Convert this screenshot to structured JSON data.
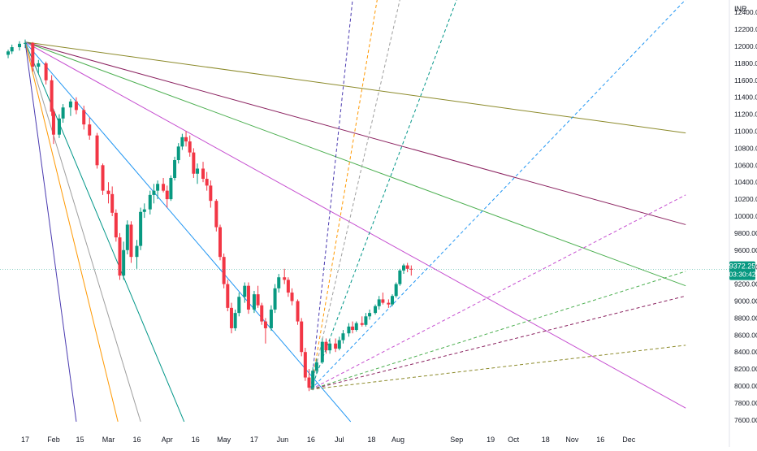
{
  "chart_data": {
    "type": "candlestick",
    "currency_label": "INR",
    "y_ticks": [
      7600,
      7800,
      8000,
      8200,
      8400,
      8600,
      8800,
      9000,
      9200,
      9400,
      9600,
      9800,
      10000,
      10200,
      10400,
      10600,
      10800,
      11000,
      11200,
      11400,
      11600,
      11800,
      12000,
      12200,
      12400
    ],
    "x_ticks": [
      {
        "label": "17",
        "date": "2020-01-17"
      },
      {
        "label": "Feb",
        "date": "2020-02-01"
      },
      {
        "label": "15",
        "date": "2020-02-15"
      },
      {
        "label": "Mar",
        "date": "2020-03-01"
      },
      {
        "label": "16",
        "date": "2020-03-16"
      },
      {
        "label": "Apr",
        "date": "2020-04-01"
      },
      {
        "label": "16",
        "date": "2020-04-16"
      },
      {
        "label": "May",
        "date": "2020-05-01"
      },
      {
        "label": "17",
        "date": "2020-05-17"
      },
      {
        "label": "Jun",
        "date": "2020-06-01"
      },
      {
        "label": "16",
        "date": "2020-06-16"
      },
      {
        "label": "Jul",
        "date": "2020-07-01"
      },
      {
        "label": "18",
        "date": "2020-07-18"
      },
      {
        "label": "Aug",
        "date": "2020-08-01"
      },
      {
        "label": "Sep",
        "date": "2020-09-01"
      },
      {
        "label": "19",
        "date": "2020-09-19"
      },
      {
        "label": "Oct",
        "date": "2020-10-01"
      },
      {
        "label": "18",
        "date": "2020-10-18"
      },
      {
        "label": "Nov",
        "date": "2020-11-01"
      },
      {
        "label": "16",
        "date": "2020-11-16"
      },
      {
        "label": "Dec",
        "date": "2020-12-01"
      }
    ],
    "candle_series": [
      {
        "date": "2020-01-08",
        "o": 11900,
        "h": 11960,
        "l": 11860,
        "c": 11940
      },
      {
        "date": "2020-01-10",
        "o": 11940,
        "h": 12020,
        "l": 11910,
        "c": 11990
      },
      {
        "date": "2020-01-14",
        "o": 11990,
        "h": 12060,
        "l": 11950,
        "c": 12030
      },
      {
        "date": "2020-01-17",
        "o": 12030,
        "h": 12080,
        "l": 11980,
        "c": 12040
      },
      {
        "date": "2020-01-21",
        "o": 12040,
        "h": 12050,
        "l": 11700,
        "c": 11760
      },
      {
        "date": "2020-01-24",
        "o": 11760,
        "h": 11840,
        "l": 11680,
        "c": 11800
      },
      {
        "date": "2020-01-28",
        "o": 11800,
        "h": 11820,
        "l": 11550,
        "c": 11600
      },
      {
        "date": "2020-01-31",
        "o": 11600,
        "h": 11660,
        "l": 11180,
        "c": 11230
      },
      {
        "date": "2020-02-01",
        "o": 11230,
        "h": 11260,
        "l": 10850,
        "c": 10960
      },
      {
        "date": "2020-02-04",
        "o": 10960,
        "h": 11200,
        "l": 10920,
        "c": 11150
      },
      {
        "date": "2020-02-06",
        "o": 11150,
        "h": 11320,
        "l": 11100,
        "c": 11280
      },
      {
        "date": "2020-02-10",
        "o": 11280,
        "h": 11380,
        "l": 11180,
        "c": 11350
      },
      {
        "date": "2020-02-13",
        "o": 11350,
        "h": 11400,
        "l": 11200,
        "c": 11250
      },
      {
        "date": "2020-02-17",
        "o": 11250,
        "h": 11300,
        "l": 11020,
        "c": 11080
      },
      {
        "date": "2020-02-20",
        "o": 11080,
        "h": 11160,
        "l": 10900,
        "c": 10950
      },
      {
        "date": "2020-02-24",
        "o": 10950,
        "h": 10980,
        "l": 10560,
        "c": 10600
      },
      {
        "date": "2020-02-27",
        "o": 10600,
        "h": 10620,
        "l": 10250,
        "c": 10300
      },
      {
        "date": "2020-03-01",
        "o": 10300,
        "h": 10400,
        "l": 10150,
        "c": 10260
      },
      {
        "date": "2020-03-03",
        "o": 10260,
        "h": 10350,
        "l": 10000,
        "c": 10040
      },
      {
        "date": "2020-03-05",
        "o": 10040,
        "h": 10080,
        "l": 9700,
        "c": 9750
      },
      {
        "date": "2020-03-07",
        "o": 9750,
        "h": 9800,
        "l": 9250,
        "c": 9300
      },
      {
        "date": "2020-03-09",
        "o": 9300,
        "h": 9700,
        "l": 9250,
        "c": 9600
      },
      {
        "date": "2020-03-11",
        "o": 9600,
        "h": 9950,
        "l": 9550,
        "c": 9900
      },
      {
        "date": "2020-03-13",
        "o": 9900,
        "h": 9940,
        "l": 9450,
        "c": 9520
      },
      {
        "date": "2020-03-16",
        "o": 9520,
        "h": 9720,
        "l": 9380,
        "c": 9650
      },
      {
        "date": "2020-03-18",
        "o": 9650,
        "h": 10100,
        "l": 9600,
        "c": 10050
      },
      {
        "date": "2020-03-20",
        "o": 10050,
        "h": 10150,
        "l": 9980,
        "c": 10080
      },
      {
        "date": "2020-03-23",
        "o": 10080,
        "h": 10300,
        "l": 10020,
        "c": 10250
      },
      {
        "date": "2020-03-25",
        "o": 10250,
        "h": 10380,
        "l": 10150,
        "c": 10300
      },
      {
        "date": "2020-03-27",
        "o": 10300,
        "h": 10420,
        "l": 10200,
        "c": 10380
      },
      {
        "date": "2020-03-30",
        "o": 10380,
        "h": 10450,
        "l": 10280,
        "c": 10300
      },
      {
        "date": "2020-04-01",
        "o": 10300,
        "h": 10360,
        "l": 10100,
        "c": 10200
      },
      {
        "date": "2020-04-03",
        "o": 10200,
        "h": 10480,
        "l": 10180,
        "c": 10450
      },
      {
        "date": "2020-04-05",
        "o": 10450,
        "h": 10700,
        "l": 10420,
        "c": 10660
      },
      {
        "date": "2020-04-07",
        "o": 10660,
        "h": 10860,
        "l": 10620,
        "c": 10820
      },
      {
        "date": "2020-04-09",
        "o": 10820,
        "h": 10970,
        "l": 10780,
        "c": 10930
      },
      {
        "date": "2020-04-11",
        "o": 10930,
        "h": 11000,
        "l": 10820,
        "c": 10880
      },
      {
        "date": "2020-04-13",
        "o": 10880,
        "h": 10950,
        "l": 10700,
        "c": 10750
      },
      {
        "date": "2020-04-15",
        "o": 10750,
        "h": 10800,
        "l": 10450,
        "c": 10500
      },
      {
        "date": "2020-04-17",
        "o": 10500,
        "h": 10620,
        "l": 10380,
        "c": 10560
      },
      {
        "date": "2020-04-20",
        "o": 10560,
        "h": 10640,
        "l": 10400,
        "c": 10440
      },
      {
        "date": "2020-04-22",
        "o": 10440,
        "h": 10520,
        "l": 10300,
        "c": 10360
      },
      {
        "date": "2020-04-24",
        "o": 10360,
        "h": 10420,
        "l": 10100,
        "c": 10180
      },
      {
        "date": "2020-04-27",
        "o": 10180,
        "h": 10200,
        "l": 9820,
        "c": 9870
      },
      {
        "date": "2020-04-29",
        "o": 9870,
        "h": 9900,
        "l": 9480,
        "c": 9520
      },
      {
        "date": "2020-05-01",
        "o": 9520,
        "h": 9560,
        "l": 9150,
        "c": 9200
      },
      {
        "date": "2020-05-03",
        "o": 9200,
        "h": 9250,
        "l": 8880,
        "c": 8920
      },
      {
        "date": "2020-05-05",
        "o": 8920,
        "h": 8980,
        "l": 8620,
        "c": 8680
      },
      {
        "date": "2020-05-07",
        "o": 8680,
        "h": 8900,
        "l": 8650,
        "c": 8860
      },
      {
        "date": "2020-05-09",
        "o": 8860,
        "h": 9100,
        "l": 8820,
        "c": 9050
      },
      {
        "date": "2020-05-12",
        "o": 9050,
        "h": 9220,
        "l": 8980,
        "c": 9180
      },
      {
        "date": "2020-05-14",
        "o": 9180,
        "h": 9220,
        "l": 8850,
        "c": 8900
      },
      {
        "date": "2020-05-17",
        "o": 8900,
        "h": 9120,
        "l": 8860,
        "c": 9080
      },
      {
        "date": "2020-05-19",
        "o": 9080,
        "h": 9180,
        "l": 8920,
        "c": 8950
      },
      {
        "date": "2020-05-21",
        "o": 8950,
        "h": 8980,
        "l": 8720,
        "c": 8760
      },
      {
        "date": "2020-05-23",
        "o": 8760,
        "h": 8800,
        "l": 8500,
        "c": 8680
      },
      {
        "date": "2020-05-26",
        "o": 8680,
        "h": 8950,
        "l": 8650,
        "c": 8900
      },
      {
        "date": "2020-05-28",
        "o": 8900,
        "h": 9200,
        "l": 8860,
        "c": 9150
      },
      {
        "date": "2020-05-30",
        "o": 9150,
        "h": 9320,
        "l": 9100,
        "c": 9280
      },
      {
        "date": "2020-06-02",
        "o": 9280,
        "h": 9380,
        "l": 9200,
        "c": 9250
      },
      {
        "date": "2020-06-04",
        "o": 9250,
        "h": 9280,
        "l": 9050,
        "c": 9100
      },
      {
        "date": "2020-06-06",
        "o": 9100,
        "h": 9150,
        "l": 8950,
        "c": 9000
      },
      {
        "date": "2020-06-09",
        "o": 9000,
        "h": 9020,
        "l": 8720,
        "c": 8760
      },
      {
        "date": "2020-06-11",
        "o": 8760,
        "h": 8800,
        "l": 8350,
        "c": 8400
      },
      {
        "date": "2020-06-13",
        "o": 8400,
        "h": 8450,
        "l": 8060,
        "c": 8100
      },
      {
        "date": "2020-06-15",
        "o": 8100,
        "h": 8200,
        "l": 7940,
        "c": 7980
      },
      {
        "date": "2020-06-17",
        "o": 7980,
        "h": 8220,
        "l": 7950,
        "c": 8180
      },
      {
        "date": "2020-06-19",
        "o": 8180,
        "h": 8320,
        "l": 8140,
        "c": 8280
      },
      {
        "date": "2020-06-22",
        "o": 8280,
        "h": 8560,
        "l": 8260,
        "c": 8520
      },
      {
        "date": "2020-06-24",
        "o": 8520,
        "h": 8560,
        "l": 8380,
        "c": 8420
      },
      {
        "date": "2020-06-26",
        "o": 8420,
        "h": 8540,
        "l": 8380,
        "c": 8500
      },
      {
        "date": "2020-06-29",
        "o": 8500,
        "h": 8560,
        "l": 8400,
        "c": 8440
      },
      {
        "date": "2020-07-01",
        "o": 8440,
        "h": 8580,
        "l": 8420,
        "c": 8540
      },
      {
        "date": "2020-07-03",
        "o": 8540,
        "h": 8660,
        "l": 8500,
        "c": 8620
      },
      {
        "date": "2020-07-06",
        "o": 8620,
        "h": 8740,
        "l": 8580,
        "c": 8700
      },
      {
        "date": "2020-07-08",
        "o": 8700,
        "h": 8760,
        "l": 8620,
        "c": 8660
      },
      {
        "date": "2020-07-10",
        "o": 8660,
        "h": 8760,
        "l": 8640,
        "c": 8740
      },
      {
        "date": "2020-07-13",
        "o": 8740,
        "h": 8820,
        "l": 8700,
        "c": 8720
      },
      {
        "date": "2020-07-15",
        "o": 8720,
        "h": 8860,
        "l": 8700,
        "c": 8820
      },
      {
        "date": "2020-07-17",
        "o": 8820,
        "h": 8900,
        "l": 8780,
        "c": 8860
      },
      {
        "date": "2020-07-20",
        "o": 8860,
        "h": 8960,
        "l": 8840,
        "c": 8940
      },
      {
        "date": "2020-07-22",
        "o": 8940,
        "h": 9060,
        "l": 8900,
        "c": 9020
      },
      {
        "date": "2020-07-24",
        "o": 9020,
        "h": 9100,
        "l": 8960,
        "c": 8980
      },
      {
        "date": "2020-07-27",
        "o": 8980,
        "h": 9020,
        "l": 8920,
        "c": 8960
      },
      {
        "date": "2020-07-29",
        "o": 8960,
        "h": 9080,
        "l": 8940,
        "c": 9060
      },
      {
        "date": "2020-07-31",
        "o": 9060,
        "h": 9220,
        "l": 9040,
        "c": 9200
      },
      {
        "date": "2020-08-02",
        "o": 9200,
        "h": 9380,
        "l": 9180,
        "c": 9360
      },
      {
        "date": "2020-08-04",
        "o": 9360,
        "h": 9440,
        "l": 9320,
        "c": 9420
      },
      {
        "date": "2020-08-06",
        "o": 9420,
        "h": 9450,
        "l": 9340,
        "c": 9380
      },
      {
        "date": "2020-08-08",
        "o": 9380,
        "h": 9420,
        "l": 9300,
        "c": 9372.25
      }
    ],
    "gann_fans": [
      {
        "anchor": {
          "date": "2020-01-17",
          "price": 12050
        },
        "style": "solid",
        "rays": [
          {
            "color": "#8c8a2a",
            "date": "2020-12-31",
            "price": 10980
          },
          {
            "color": "#8b2260",
            "date": "2020-12-31",
            "price": 9900
          },
          {
            "color": "#4caf50",
            "date": "2020-12-31",
            "price": 9180
          },
          {
            "color": "#c64fd0",
            "date": "2020-12-31",
            "price": 7740
          },
          {
            "color": "#2196f3",
            "date": "2020-07-07",
            "price": 7580
          },
          {
            "color": "#009688",
            "date": "2020-04-10",
            "price": 7580
          },
          {
            "color": "#9e9e9e",
            "date": "2020-03-18",
            "price": 7580
          },
          {
            "color": "#ff9800",
            "date": "2020-03-06",
            "price": 7580
          },
          {
            "color": "#4a3ab0",
            "date": "2020-02-13",
            "price": 7580
          }
        ]
      },
      {
        "anchor": {
          "date": "2020-06-16",
          "price": 7960
        },
        "style": "dashed",
        "rays": [
          {
            "color": "#4a3ab0",
            "date": "2020-07-08",
            "price": 12550
          },
          {
            "color": "#ff9800",
            "date": "2020-07-21",
            "price": 12550
          },
          {
            "color": "#9e9e9e",
            "date": "2020-08-02",
            "price": 12550
          },
          {
            "color": "#009688",
            "date": "2020-09-01",
            "price": 12550
          },
          {
            "color": "#2196f3",
            "date": "2020-12-31",
            "price": 12550
          },
          {
            "color": "#c64fd0",
            "date": "2020-12-31",
            "price": 10250
          },
          {
            "color": "#4caf50",
            "date": "2020-12-31",
            "price": 9350
          },
          {
            "color": "#8b2260",
            "date": "2020-12-31",
            "price": 9060
          },
          {
            "color": "#8c8a2a",
            "date": "2020-12-31",
            "price": 8480
          }
        ]
      }
    ],
    "last_price": {
      "value": "9372.25",
      "countdown": "03:30:42",
      "color": "#089981"
    },
    "colors": {
      "up": "#089981",
      "down": "#f23645"
    }
  }
}
